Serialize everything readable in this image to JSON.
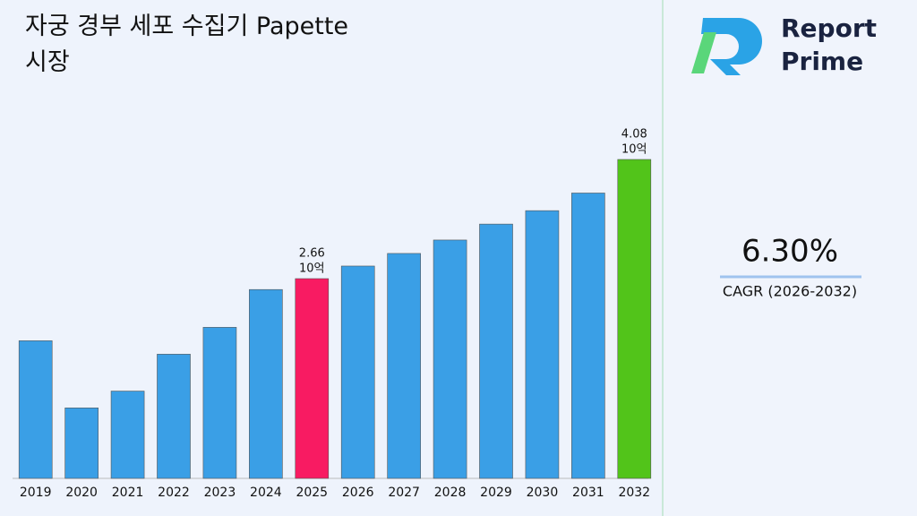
{
  "chart_data": {
    "type": "bar",
    "title": "자궁 경부 세포 수집기 Papette 시장",
    "categories": [
      "2019",
      "2020",
      "2021",
      "2022",
      "2023",
      "2024",
      "2025",
      "2026",
      "2027",
      "2028",
      "2029",
      "2030",
      "2031",
      "2032"
    ],
    "values": [
      1.92,
      1.12,
      1.32,
      1.76,
      2.08,
      2.53,
      2.66,
      2.81,
      2.96,
      3.12,
      3.31,
      3.47,
      3.68,
      4.08
    ],
    "value_labels": [
      null,
      null,
      null,
      null,
      null,
      null,
      "2.66",
      null,
      null,
      null,
      null,
      null,
      null,
      "4.08"
    ],
    "value_unit": "10억",
    "colors": [
      "#3a9fe6",
      "#3a9fe6",
      "#3a9fe6",
      "#3a9fe6",
      "#3a9fe6",
      "#3a9fe6",
      "#f81b62",
      "#3a9fe6",
      "#3a9fe6",
      "#3a9fe6",
      "#3a9fe6",
      "#3a9fe6",
      "#3a9fe6",
      "#52c41a"
    ],
    "ylim": [
      0.28,
      5.98
    ]
  },
  "brand": {
    "line1": "Report",
    "line2": "Prime"
  },
  "kpi": {
    "value": "6.30%",
    "label": "CAGR (2026-2032)"
  }
}
